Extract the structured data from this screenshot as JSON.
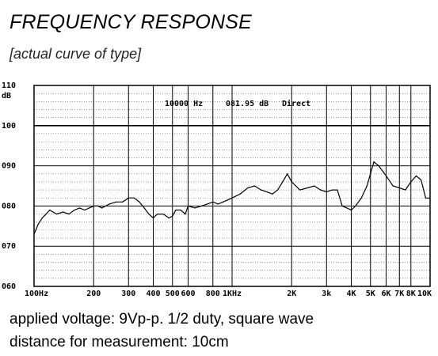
{
  "header": {
    "title": "FREQUENCY RESPONSE",
    "subtitle": "[actual curve of type]"
  },
  "notes": {
    "voltage": "applied voltage: 9Vp-p. 1/2 duty, square wave",
    "distance": "distance for measurement: 10cm"
  },
  "chart_data": {
    "type": "line",
    "title": "",
    "ylabel": "dB",
    "xlim": [
      100,
      10000
    ],
    "ylim": [
      60,
      110
    ],
    "x_scale": "log",
    "grid": true,
    "y_ticks": [
      "060",
      "070",
      "080",
      "090",
      "100",
      "110"
    ],
    "x_ticks": [
      {
        "label": "100Hz",
        "value": 100
      },
      {
        "label": "200",
        "value": 200
      },
      {
        "label": "300",
        "value": 300
      },
      {
        "label": "400",
        "value": 400
      },
      {
        "label": "500",
        "value": 500
      },
      {
        "label": "600",
        "value": 600
      },
      {
        "label": "800",
        "value": 800
      },
      {
        "label": "1KHz",
        "value": 1000
      },
      {
        "label": "2K",
        "value": 2000
      },
      {
        "label": "3k",
        "value": 3000
      },
      {
        "label": "4K",
        "value": 4000
      },
      {
        "label": "5K",
        "value": 5000
      },
      {
        "label": "6K",
        "value": 6000
      },
      {
        "label": "7K",
        "value": 7000
      },
      {
        "label": "8K",
        "value": 8000
      },
      {
        "label": "10K",
        "value": 10000
      }
    ],
    "readout": {
      "freq": "10000 Hz",
      "level": "081.95 dB",
      "mode": "Direct"
    },
    "reference_level": 100,
    "x": [
      100,
      105,
      110,
      115,
      120,
      130,
      140,
      150,
      160,
      170,
      180,
      190,
      200,
      210,
      220,
      240,
      260,
      280,
      300,
      320,
      340,
      360,
      380,
      400,
      420,
      450,
      480,
      500,
      520,
      550,
      580,
      600,
      650,
      700,
      750,
      800,
      850,
      900,
      950,
      1000,
      1100,
      1200,
      1300,
      1400,
      1500,
      1600,
      1700,
      1800,
      1900,
      2000,
      2200,
      2400,
      2600,
      2800,
      3000,
      3200,
      3400,
      3600,
      3800,
      4000,
      4200,
      4500,
      4800,
      5000,
      5200,
      5500,
      5800,
      6000,
      6500,
      7000,
      7500,
      8000,
      8500,
      9000,
      9500,
      10000
    ],
    "series": [
      {
        "values": [
          73,
          75.5,
          77,
          78,
          79,
          78,
          78.5,
          78,
          79,
          79.5,
          79,
          79.5,
          80,
          80,
          79.5,
          80.5,
          81,
          81,
          82,
          82,
          81,
          79.5,
          78,
          77,
          78,
          78,
          77,
          77.5,
          79,
          79,
          78,
          80,
          79.5,
          80,
          80.5,
          81,
          80.5,
          81,
          81.5,
          82,
          83,
          84.5,
          85,
          84,
          83.5,
          83,
          84,
          86,
          88,
          86,
          84,
          84.5,
          85,
          84,
          83.5,
          84,
          84,
          80,
          79.5,
          79,
          80,
          82,
          85,
          88,
          91,
          90,
          88.5,
          87.5,
          85,
          84.5,
          84,
          86,
          87.5,
          86.5,
          82,
          81.95
        ]
      }
    ]
  }
}
